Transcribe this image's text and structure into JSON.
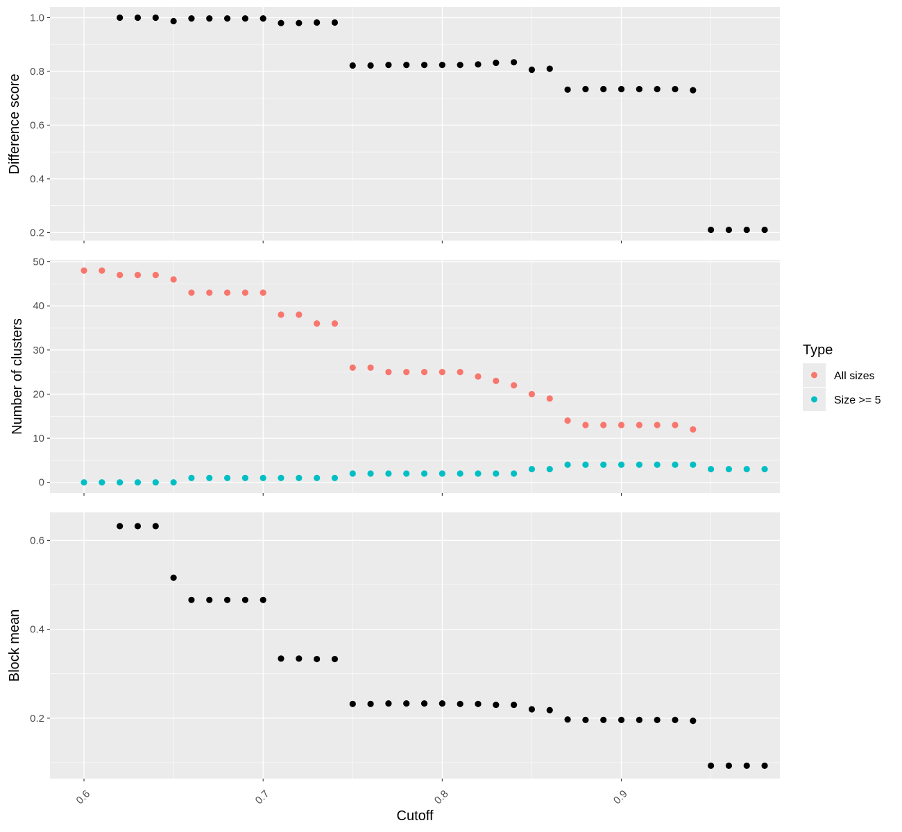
{
  "chart_data": [
    {
      "type": "scatter",
      "panel": "top",
      "ylabel": "Difference score",
      "ylim": [
        0.17,
        1.04
      ],
      "yticks": [
        0.2,
        0.4,
        0.6,
        0.8,
        1.0
      ],
      "ytick_labels": [
        "0.2",
        "0.4",
        "0.6",
        "0.8",
        "1.0"
      ],
      "grid": true,
      "series": [
        {
          "color": "#000000",
          "x": [
            0.62,
            0.63,
            0.64,
            0.65,
            0.66,
            0.67,
            0.68,
            0.69,
            0.7,
            0.71,
            0.72,
            0.73,
            0.74,
            0.75,
            0.76,
            0.77,
            0.78,
            0.79,
            0.8,
            0.81,
            0.82,
            0.83,
            0.84,
            0.85,
            0.86,
            0.87,
            0.88,
            0.89,
            0.9,
            0.91,
            0.92,
            0.93,
            0.94,
            0.95,
            0.96,
            0.97,
            0.98
          ],
          "y": [
            1.0,
            1.0,
            1.0,
            0.987,
            0.997,
            0.997,
            0.997,
            0.997,
            0.997,
            0.98,
            0.98,
            0.982,
            0.982,
            0.822,
            0.822,
            0.824,
            0.824,
            0.824,
            0.824,
            0.824,
            0.826,
            0.832,
            0.834,
            0.806,
            0.81,
            0.732,
            0.734,
            0.734,
            0.734,
            0.734,
            0.734,
            0.734,
            0.73,
            0.21,
            0.21,
            0.21,
            0.21
          ]
        }
      ]
    },
    {
      "type": "scatter",
      "panel": "middle",
      "ylabel": "Number of clusters",
      "ylim": [
        -2.4,
        50.4
      ],
      "yticks": [
        0,
        10,
        20,
        30,
        40,
        50
      ],
      "ytick_labels": [
        "0",
        "10",
        "20",
        "30",
        "40",
        "50"
      ],
      "grid": true,
      "legend": {
        "title": "Type",
        "placement": "right"
      },
      "series": [
        {
          "name": "All sizes",
          "color": "#F8766D",
          "x": [
            0.6,
            0.61,
            0.62,
            0.63,
            0.64,
            0.65,
            0.66,
            0.67,
            0.68,
            0.69,
            0.7,
            0.71,
            0.72,
            0.73,
            0.74,
            0.75,
            0.76,
            0.77,
            0.78,
            0.79,
            0.8,
            0.81,
            0.82,
            0.83,
            0.84,
            0.85,
            0.86,
            0.87,
            0.88,
            0.89,
            0.9,
            0.91,
            0.92,
            0.93,
            0.94
          ],
          "y": [
            48,
            48,
            47,
            47,
            47,
            46,
            43,
            43,
            43,
            43,
            43,
            38,
            38,
            36,
            36,
            26,
            26,
            25,
            25,
            25,
            25,
            25,
            24,
            23,
            22,
            20,
            19,
            14,
            13,
            13,
            13,
            13,
            13,
            13,
            12
          ]
        },
        {
          "name": "Size >= 5",
          "color": "#00BFC4",
          "x": [
            0.6,
            0.61,
            0.62,
            0.63,
            0.64,
            0.65,
            0.66,
            0.67,
            0.68,
            0.69,
            0.7,
            0.71,
            0.72,
            0.73,
            0.74,
            0.75,
            0.76,
            0.77,
            0.78,
            0.79,
            0.8,
            0.81,
            0.82,
            0.83,
            0.84,
            0.85,
            0.86,
            0.87,
            0.88,
            0.89,
            0.9,
            0.91,
            0.92,
            0.93,
            0.94,
            0.95,
            0.96,
            0.97,
            0.98
          ],
          "y": [
            0,
            0,
            0,
            0,
            0,
            0,
            1,
            1,
            1,
            1,
            1,
            1,
            1,
            1,
            1,
            2,
            2,
            2,
            2,
            2,
            2,
            2,
            2,
            2,
            2,
            3,
            3,
            4,
            4,
            4,
            4,
            4,
            4,
            4,
            4,
            3,
            3,
            3,
            3
          ]
        }
      ]
    },
    {
      "type": "scatter",
      "panel": "bottom",
      "ylabel": "Block mean",
      "xlabel": "Cutoff",
      "ylim": [
        0.064,
        0.663
      ],
      "yticks": [
        0.2,
        0.4,
        0.6
      ],
      "ytick_labels": [
        "0.2",
        "0.4",
        "0.6"
      ],
      "grid": true,
      "series": [
        {
          "color": "#000000",
          "x": [
            0.62,
            0.63,
            0.64,
            0.65,
            0.66,
            0.67,
            0.68,
            0.69,
            0.7,
            0.71,
            0.72,
            0.73,
            0.74,
            0.75,
            0.76,
            0.77,
            0.78,
            0.79,
            0.8,
            0.81,
            0.82,
            0.83,
            0.84,
            0.85,
            0.86,
            0.87,
            0.88,
            0.89,
            0.9,
            0.91,
            0.92,
            0.93,
            0.94,
            0.95,
            0.96,
            0.97,
            0.98
          ],
          "y": [
            0.632,
            0.632,
            0.632,
            0.516,
            0.466,
            0.466,
            0.466,
            0.466,
            0.466,
            0.334,
            0.334,
            0.333,
            0.333,
            0.232,
            0.232,
            0.233,
            0.233,
            0.233,
            0.233,
            0.232,
            0.232,
            0.23,
            0.23,
            0.22,
            0.218,
            0.197,
            0.196,
            0.196,
            0.196,
            0.196,
            0.196,
            0.196,
            0.194,
            0.093,
            0.093,
            0.093,
            0.093
          ]
        }
      ]
    }
  ],
  "x_axis": {
    "title": "Cutoff",
    "xlim": [
      0.581,
      0.9885
    ],
    "ticks": [
      0.6,
      0.7,
      0.8,
      0.9
    ],
    "tick_labels": [
      "0.6",
      "0.7",
      "0.8",
      "0.9"
    ]
  },
  "legend": {
    "title": "Type",
    "entries": [
      {
        "label": "All sizes",
        "color": "#F8766D"
      },
      {
        "label": "Size >= 5",
        "color": "#00BFC4"
      }
    ]
  },
  "colors": {
    "panel_background": "#EBEBEB",
    "grid_major": "#FFFFFF",
    "point_default": "#000000"
  }
}
